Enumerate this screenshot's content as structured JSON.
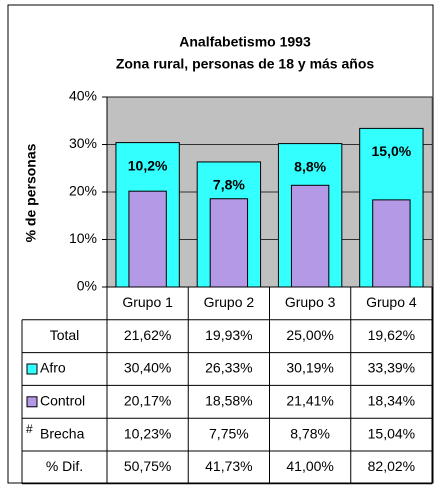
{
  "chart_data": {
    "type": "bar",
    "title": [
      "Analfabetismo 1993",
      "Zona rural, personas de 18 y más años"
    ],
    "y_label": "% de personas",
    "categories": [
      "Grupo 1",
      "Grupo 2",
      "Grupo 3",
      "Grupo 4"
    ],
    "series": [
      {
        "name": "Afro",
        "color": "#33ffff",
        "values": [
          30.4,
          26.33,
          30.19,
          33.39
        ],
        "value_labels": [
          "30,40%",
          "26,33%",
          "30,19%",
          "33,39%"
        ]
      },
      {
        "name": "Control",
        "color": "#b399e6",
        "values": [
          20.17,
          18.58,
          21.41,
          18.34
        ],
        "value_labels": [
          "20,17%",
          "18,58%",
          "21,41%",
          "18,34%"
        ]
      }
    ],
    "annotations": [
      "10,2%",
      "7,8%",
      "8,8%",
      "15,0%"
    ],
    "table_rows": [
      {
        "name": "Total",
        "cells": [
          "21,62%",
          "19,93%",
          "25,00%",
          "19,62%"
        ]
      },
      {
        "series": 0
      },
      {
        "series": 1
      },
      {
        "key": "#",
        "name": "Brecha",
        "cells": [
          "10,23%",
          "7,75%",
          "8,78%",
          "15,04%"
        ]
      },
      {
        "name": "% Dif.",
        "cells": [
          "50,75%",
          "41,73%",
          "41,00%",
          "82,02%"
        ]
      }
    ],
    "ylim": [
      0,
      40
    ],
    "yticks": [
      {
        "value": 0,
        "label": "0%"
      },
      {
        "value": 10,
        "label": "10%"
      },
      {
        "value": 20,
        "label": "20%"
      },
      {
        "value": 30,
        "label": "30%"
      },
      {
        "value": 40,
        "label": "40%"
      }
    ],
    "background": "#c0c0c0",
    "grid": true
  }
}
